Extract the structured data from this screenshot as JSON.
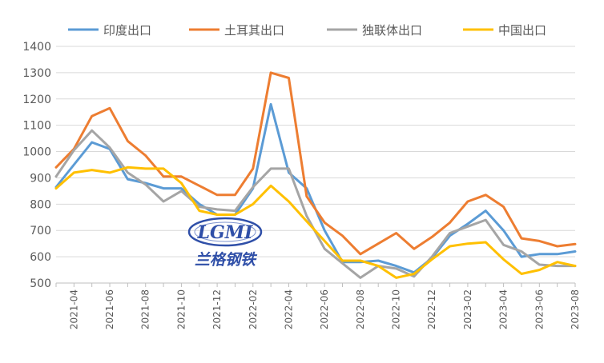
{
  "chart_data": {
    "type": "line",
    "title": "",
    "xlabel": "",
    "ylabel": "",
    "ylim": [
      500,
      1400
    ],
    "yticks": [
      500,
      600,
      700,
      800,
      900,
      1000,
      1100,
      1200,
      1300,
      1400
    ],
    "grid": "horizontal",
    "legend_position": "top",
    "categories": [
      "2021-03",
      "2021-04",
      "2021-05",
      "2021-06",
      "2021-07",
      "2021-08",
      "2021-09",
      "2021-10",
      "2021-11",
      "2021-12",
      "2022-01",
      "2022-02",
      "2022-03",
      "2022-04",
      "2022-05",
      "2022-06",
      "2022-07",
      "2022-08",
      "2022-09",
      "2022-10",
      "2022-11",
      "2022-12",
      "2023-01",
      "2023-02",
      "2023-03",
      "2023-04",
      "2023-05",
      "2023-06",
      "2023-07",
      "2023-08"
    ],
    "xtick_labels": [
      "2021-04",
      "2021-06",
      "2021-08",
      "2021-10",
      "2021-12",
      "2022-02",
      "2022-04",
      "2022-06",
      "2022-08",
      "2022-10",
      "2022-12",
      "2023-02",
      "2023-04",
      "2023-06",
      "2023-08"
    ],
    "series": [
      {
        "name": "印度出口",
        "color": "#5B9BD5",
        "values": [
          865,
          950,
          1035,
          1010,
          895,
          880,
          860,
          860,
          800,
          760,
          760,
          860,
          1180,
          920,
          860,
          700,
          580,
          580,
          585,
          565,
          540,
          595,
          680,
          725,
          775,
          700,
          600,
          610,
          610,
          620
        ]
      },
      {
        "name": "土耳其出口",
        "color": "#ED7D31",
        "values": [
          940,
          1010,
          1135,
          1165,
          1040,
          985,
          905,
          905,
          870,
          835,
          835,
          935,
          1300,
          1280,
          830,
          730,
          680,
          610,
          650,
          690,
          630,
          675,
          730,
          810,
          835,
          790,
          670,
          660,
          640,
          648
        ]
      },
      {
        "name": "独联体出口",
        "color": "#A5A5A5",
        "values": [
          905,
          1005,
          1080,
          1015,
          920,
          875,
          810,
          850,
          790,
          780,
          775,
          865,
          935,
          935,
          755,
          630,
          575,
          520,
          565,
          555,
          525,
          600,
          690,
          715,
          740,
          645,
          620,
          570,
          565,
          565
        ]
      },
      {
        "name": "中国出口",
        "color": "#FFC000",
        "values": [
          860,
          920,
          930,
          920,
          940,
          935,
          935,
          880,
          775,
          760,
          760,
          800,
          870,
          810,
          735,
          660,
          585,
          585,
          565,
          520,
          535,
          590,
          640,
          650,
          655,
          590,
          535,
          550,
          580,
          565
        ]
      }
    ]
  },
  "watermark": {
    "logo_text": "LGMI",
    "caption": "兰格钢铁"
  }
}
